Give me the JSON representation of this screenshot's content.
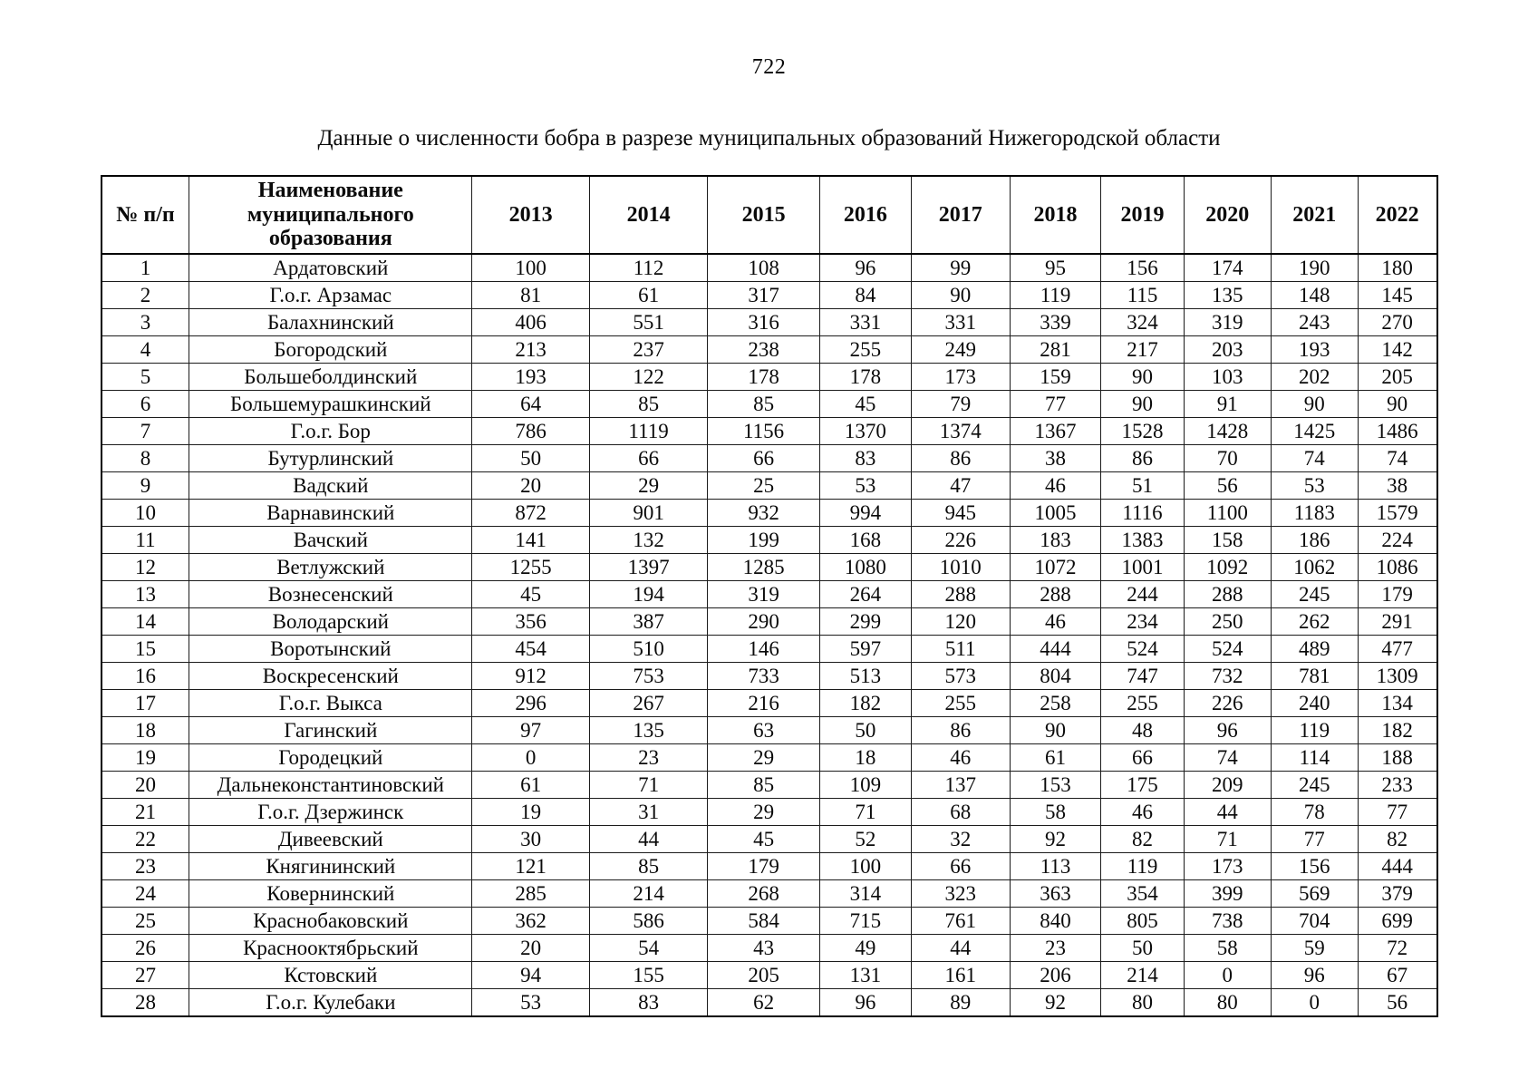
{
  "page": {
    "number": "722",
    "title": "Данные о численности бобра в разрезе муниципальных образований Нижегородской области"
  },
  "table": {
    "headers": [
      "№ п/п",
      "Наименование\nмуниципального\nобразования",
      "2013",
      "2014",
      "2015",
      "2016",
      "2017",
      "2018",
      "2019",
      "2020",
      "2021",
      "2022"
    ],
    "rows": [
      {
        "num": "1",
        "name": "Ардатовский",
        "values": [
          "100",
          "112",
          "108",
          "96",
          "99",
          "95",
          "156",
          "174",
          "190",
          "180"
        ]
      },
      {
        "num": "2",
        "name": "Г.о.г. Арзамас",
        "values": [
          "81",
          "61",
          "317",
          "84",
          "90",
          "119",
          "115",
          "135",
          "148",
          "145"
        ]
      },
      {
        "num": "3",
        "name": "Балахнинский",
        "values": [
          "406",
          "551",
          "316",
          "331",
          "331",
          "339",
          "324",
          "319",
          "243",
          "270"
        ]
      },
      {
        "num": "4",
        "name": "Богородский",
        "values": [
          "213",
          "237",
          "238",
          "255",
          "249",
          "281",
          "217",
          "203",
          "193",
          "142"
        ]
      },
      {
        "num": "5",
        "name": "Большеболдинский",
        "values": [
          "193",
          "122",
          "178",
          "178",
          "173",
          "159",
          "90",
          "103",
          "202",
          "205"
        ]
      },
      {
        "num": "6",
        "name": "Большемурашкинский",
        "values": [
          "64",
          "85",
          "85",
          "45",
          "79",
          "77",
          "90",
          "91",
          "90",
          "90"
        ]
      },
      {
        "num": "7",
        "name": "Г.о.г. Бор",
        "values": [
          "786",
          "1119",
          "1156",
          "1370",
          "1374",
          "1367",
          "1528",
          "1428",
          "1425",
          "1486"
        ]
      },
      {
        "num": "8",
        "name": "Бутурлинский",
        "values": [
          "50",
          "66",
          "66",
          "83",
          "86",
          "38",
          "86",
          "70",
          "74",
          "74"
        ]
      },
      {
        "num": "9",
        "name": "Вадский",
        "values": [
          "20",
          "29",
          "25",
          "53",
          "47",
          "46",
          "51",
          "56",
          "53",
          "38"
        ]
      },
      {
        "num": "10",
        "name": "Варнавинский",
        "values": [
          "872",
          "901",
          "932",
          "994",
          "945",
          "1005",
          "1116",
          "1100",
          "1183",
          "1579"
        ]
      },
      {
        "num": "11",
        "name": "Вачский",
        "values": [
          "141",
          "132",
          "199",
          "168",
          "226",
          "183",
          "1383",
          "158",
          "186",
          "224"
        ]
      },
      {
        "num": "12",
        "name": "Ветлужский",
        "values": [
          "1255",
          "1397",
          "1285",
          "1080",
          "1010",
          "1072",
          "1001",
          "1092",
          "1062",
          "1086"
        ]
      },
      {
        "num": "13",
        "name": "Вознесенский",
        "values": [
          "45",
          "194",
          "319",
          "264",
          "288",
          "288",
          "244",
          "288",
          "245",
          "179"
        ]
      },
      {
        "num": "14",
        "name": "Володарский",
        "values": [
          "356",
          "387",
          "290",
          "299",
          "120",
          "46",
          "234",
          "250",
          "262",
          "291"
        ]
      },
      {
        "num": "15",
        "name": "Воротынский",
        "values": [
          "454",
          "510",
          "146",
          "597",
          "511",
          "444",
          "524",
          "524",
          "489",
          "477"
        ]
      },
      {
        "num": "16",
        "name": "Воскресенский",
        "values": [
          "912",
          "753",
          "733",
          "513",
          "573",
          "804",
          "747",
          "732",
          "781",
          "1309"
        ]
      },
      {
        "num": "17",
        "name": "Г.о.г. Выкса",
        "values": [
          "296",
          "267",
          "216",
          "182",
          "255",
          "258",
          "255",
          "226",
          "240",
          "134"
        ]
      },
      {
        "num": "18",
        "name": "Гагинский",
        "values": [
          "97",
          "135",
          "63",
          "50",
          "86",
          "90",
          "48",
          "96",
          "119",
          "182"
        ]
      },
      {
        "num": "19",
        "name": "Городецкий",
        "values": [
          "0",
          "23",
          "29",
          "18",
          "46",
          "61",
          "66",
          "74",
          "114",
          "188"
        ]
      },
      {
        "num": "20",
        "name": "Дальнеконстантиновский",
        "values": [
          "61",
          "71",
          "85",
          "109",
          "137",
          "153",
          "175",
          "209",
          "245",
          "233"
        ]
      },
      {
        "num": "21",
        "name": "Г.о.г. Дзержинск",
        "values": [
          "19",
          "31",
          "29",
          "71",
          "68",
          "58",
          "46",
          "44",
          "78",
          "77"
        ]
      },
      {
        "num": "22",
        "name": "Дивеевский",
        "values": [
          "30",
          "44",
          "45",
          "52",
          "32",
          "92",
          "82",
          "71",
          "77",
          "82"
        ]
      },
      {
        "num": "23",
        "name": "Княгининский",
        "values": [
          "121",
          "85",
          "179",
          "100",
          "66",
          "113",
          "119",
          "173",
          "156",
          "444"
        ]
      },
      {
        "num": "24",
        "name": "Ковернинский",
        "values": [
          "285",
          "214",
          "268",
          "314",
          "323",
          "363",
          "354",
          "399",
          "569",
          "379"
        ]
      },
      {
        "num": "25",
        "name": "Краснобаковский",
        "values": [
          "362",
          "586",
          "584",
          "715",
          "761",
          "840",
          "805",
          "738",
          "704",
          "699"
        ]
      },
      {
        "num": "26",
        "name": "Краснооктябрьский",
        "values": [
          "20",
          "54",
          "43",
          "49",
          "44",
          "23",
          "50",
          "58",
          "59",
          "72"
        ]
      },
      {
        "num": "27",
        "name": "Кстовский",
        "values": [
          "94",
          "155",
          "205",
          "131",
          "161",
          "206",
          "214",
          "0",
          "96",
          "67"
        ]
      },
      {
        "num": "28",
        "name": "Г.о.г. Кулебаки",
        "values": [
          "53",
          "83",
          "62",
          "96",
          "89",
          "92",
          "80",
          "80",
          "0",
          "56"
        ]
      }
    ]
  }
}
